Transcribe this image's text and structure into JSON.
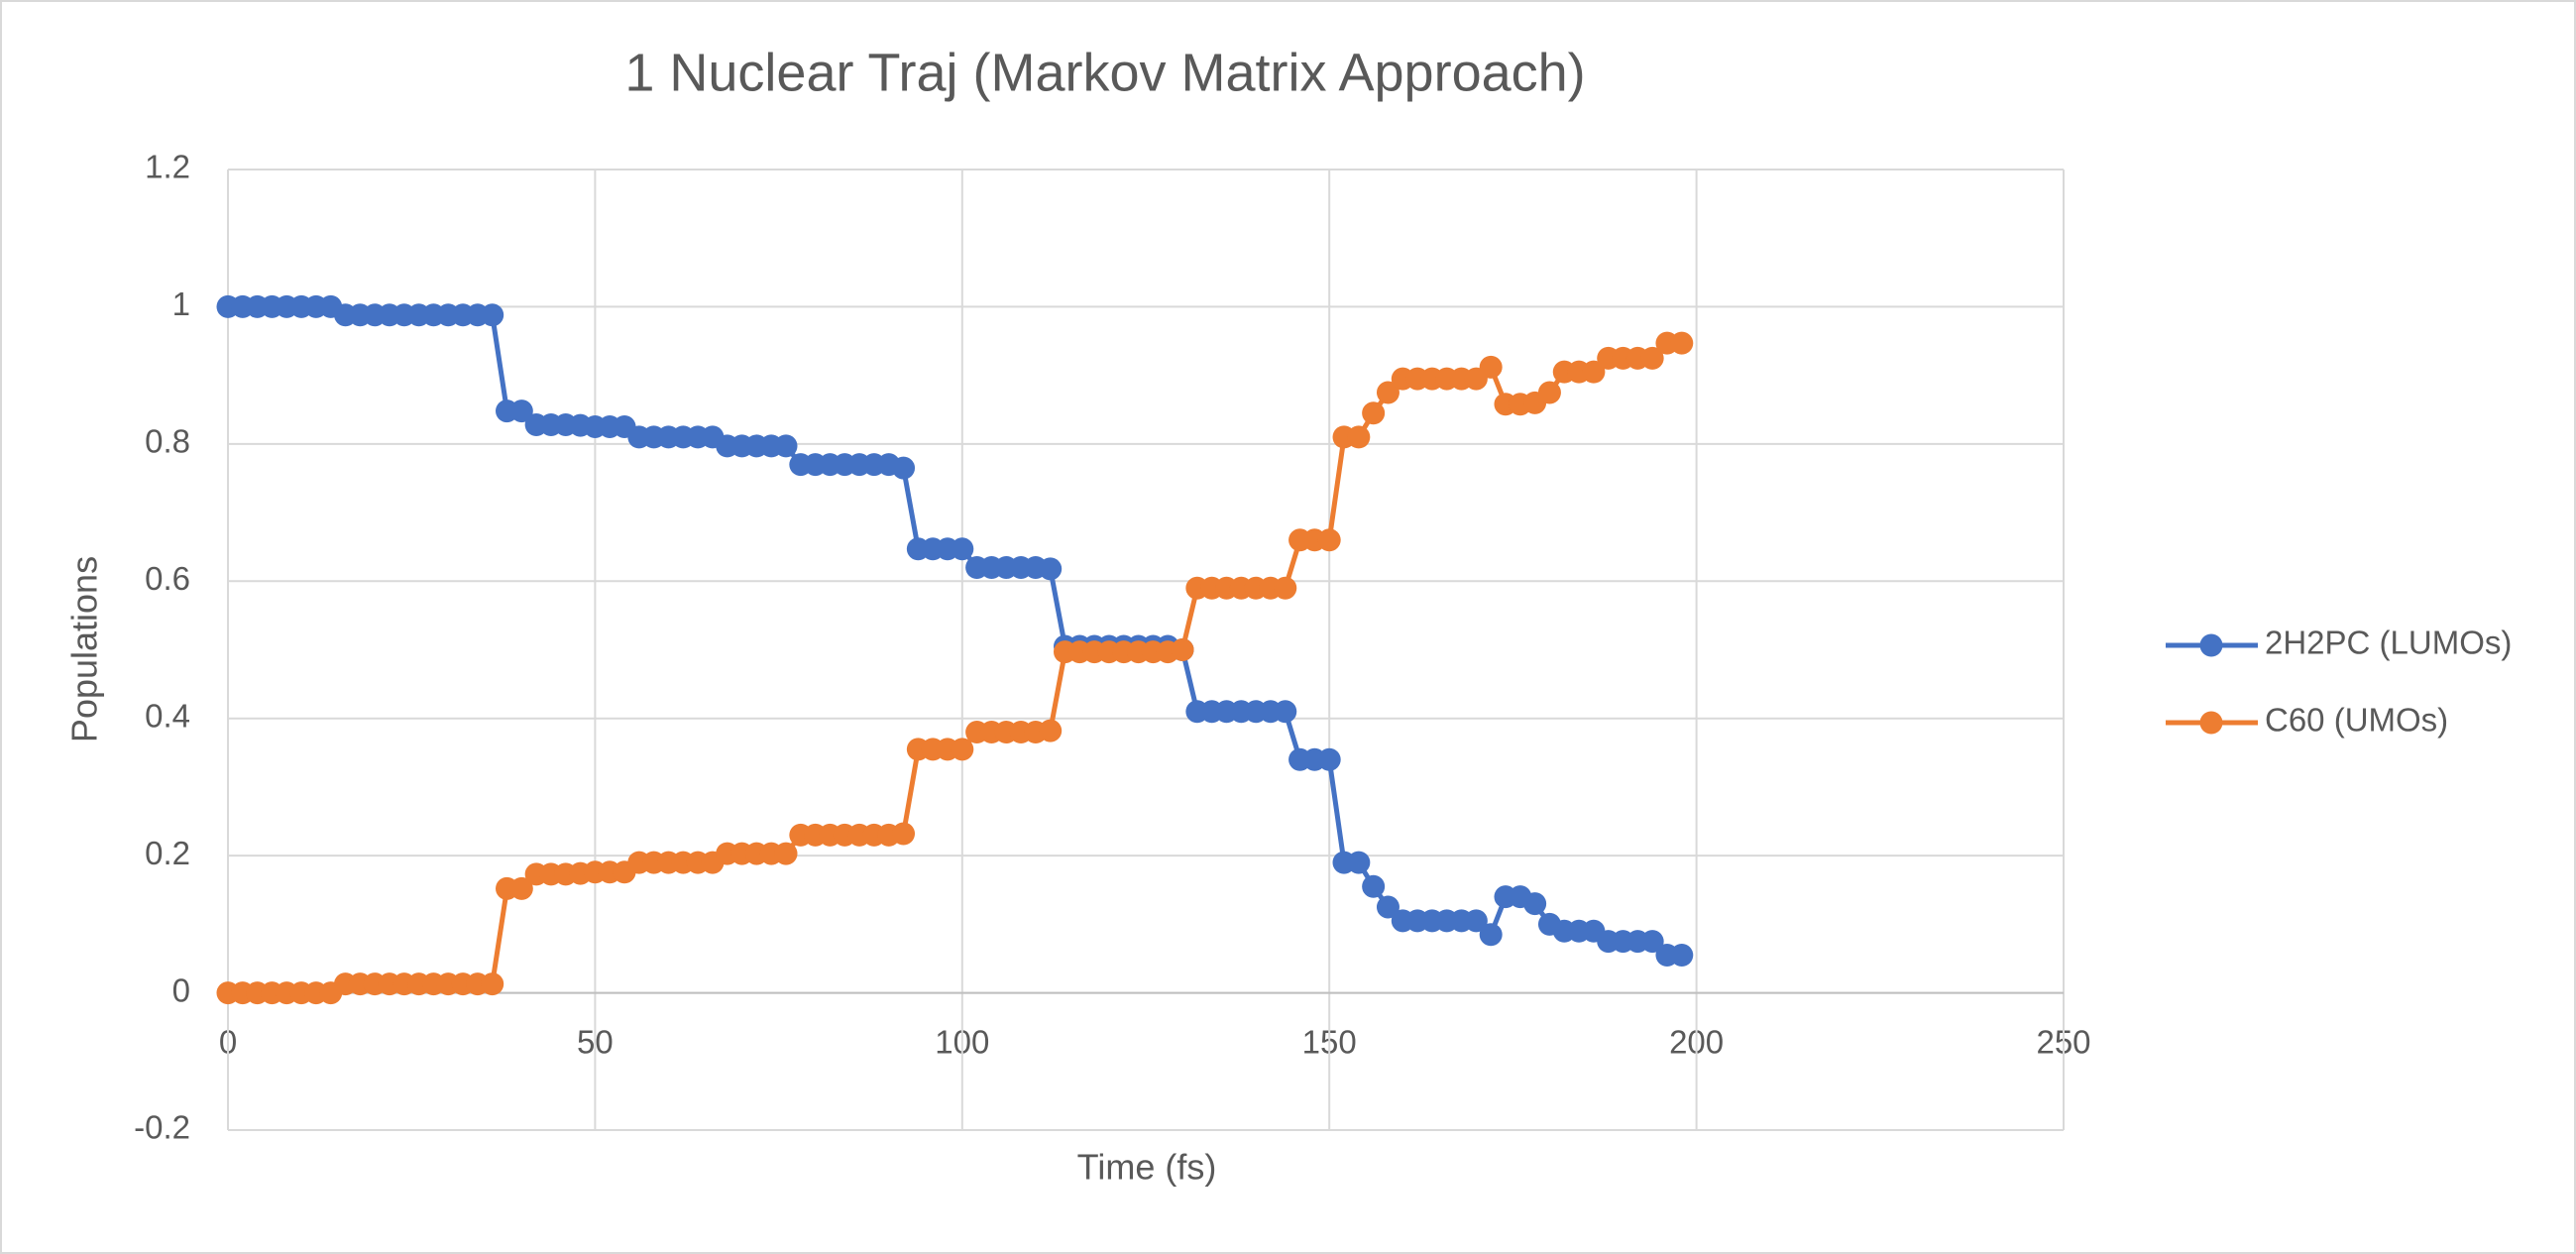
{
  "chart_data": {
    "type": "line",
    "title": "1 Nuclear Traj (Markov Matrix Approach)",
    "x_label": "Time (fs)",
    "y_label": "Populations",
    "x": [
      0,
      2,
      4,
      6,
      8,
      10,
      12,
      14,
      16,
      18,
      20,
      22,
      24,
      26,
      28,
      30,
      32,
      34,
      36,
      38,
      40,
      42,
      44,
      46,
      48,
      50,
      52,
      54,
      56,
      58,
      60,
      62,
      64,
      66,
      68,
      70,
      72,
      74,
      76,
      78,
      80,
      82,
      84,
      86,
      88,
      90,
      92,
      94,
      96,
      98,
      100,
      102,
      104,
      106,
      108,
      110,
      112,
      114,
      116,
      118,
      120,
      122,
      124,
      126,
      128,
      130,
      132,
      134,
      136,
      138,
      140,
      142,
      144,
      146,
      148,
      150,
      152,
      154,
      156,
      158,
      160,
      162,
      164,
      166,
      168,
      170,
      172,
      174,
      176,
      178,
      180,
      182,
      184,
      186,
      188,
      190,
      192,
      194,
      196,
      198
    ],
    "series": [
      {
        "name": "2H2PC (LUMOs)",
        "color": "#4472c4",
        "values": [
          1,
          1,
          1,
          1,
          1,
          1,
          1,
          1,
          0.988,
          0.988,
          0.988,
          0.988,
          0.988,
          0.988,
          0.988,
          0.988,
          0.988,
          0.988,
          0.988,
          0.848,
          0.848,
          0.828,
          0.828,
          0.828,
          0.827,
          0.825,
          0.825,
          0.825,
          0.81,
          0.81,
          0.81,
          0.81,
          0.81,
          0.81,
          0.797,
          0.797,
          0.797,
          0.797,
          0.797,
          0.77,
          0.77,
          0.77,
          0.77,
          0.77,
          0.77,
          0.77,
          0.765,
          0.647,
          0.647,
          0.647,
          0.647,
          0.62,
          0.62,
          0.62,
          0.62,
          0.62,
          0.618,
          0.505,
          0.505,
          0.505,
          0.505,
          0.505,
          0.505,
          0.505,
          0.505,
          0.5,
          0.41,
          0.41,
          0.41,
          0.41,
          0.41,
          0.41,
          0.41,
          0.34,
          0.34,
          0.34,
          0.19,
          0.19,
          0.155,
          0.125,
          0.105,
          0.105,
          0.105,
          0.105,
          0.105,
          0.105,
          0.085,
          0.14,
          0.14,
          0.13,
          0.1,
          0.09,
          0.09,
          0.09,
          0.075,
          0.075,
          0.075,
          0.075,
          0.055,
          0.055
        ]
      },
      {
        "name": "C60 (UMOs)",
        "color": "#ed7d31",
        "values": [
          0,
          0,
          0,
          0,
          0,
          0,
          0,
          0,
          0.013,
          0.013,
          0.013,
          0.013,
          0.013,
          0.013,
          0.013,
          0.013,
          0.013,
          0.013,
          0.013,
          0.152,
          0.152,
          0.173,
          0.173,
          0.173,
          0.174,
          0.176,
          0.176,
          0.176,
          0.19,
          0.19,
          0.19,
          0.19,
          0.19,
          0.19,
          0.203,
          0.203,
          0.203,
          0.203,
          0.203,
          0.23,
          0.23,
          0.23,
          0.23,
          0.23,
          0.23,
          0.23,
          0.232,
          0.355,
          0.355,
          0.355,
          0.355,
          0.38,
          0.38,
          0.38,
          0.38,
          0.38,
          0.382,
          0.497,
          0.497,
          0.497,
          0.497,
          0.497,
          0.497,
          0.497,
          0.497,
          0.5,
          0.59,
          0.59,
          0.59,
          0.59,
          0.59,
          0.59,
          0.59,
          0.66,
          0.66,
          0.66,
          0.81,
          0.81,
          0.845,
          0.875,
          0.895,
          0.895,
          0.895,
          0.895,
          0.895,
          0.895,
          0.912,
          0.858,
          0.858,
          0.86,
          0.875,
          0.905,
          0.905,
          0.905,
          0.925,
          0.925,
          0.925,
          0.925,
          0.947,
          0.947
        ]
      }
    ],
    "xlim": [
      0,
      250
    ],
    "xticks": [
      0,
      50,
      100,
      150,
      200,
      250
    ],
    "ylim": [
      -0.2,
      1.2
    ],
    "yticks": [
      -0.2,
      0,
      0.2,
      0.4,
      0.6,
      0.8,
      1,
      1.2
    ],
    "grid": true,
    "legend": "right",
    "markers": true
  }
}
